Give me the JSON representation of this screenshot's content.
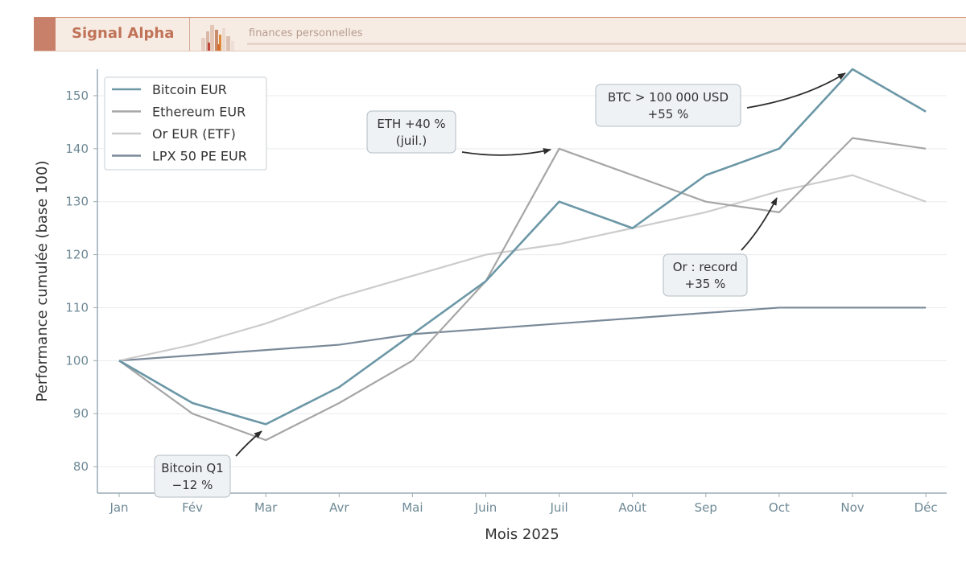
{
  "header": {
    "brand": "Signal Alpha",
    "tagline": "finances personnelles",
    "accent_color": "#c8806a"
  },
  "chart_data": {
    "type": "line",
    "xlabel": "Mois 2025",
    "ylabel": "Performance cumulée (base 100)",
    "categories": [
      "Jan",
      "Fév",
      "Mar",
      "Avr",
      "Mai",
      "Juin",
      "Juil",
      "Août",
      "Sep",
      "Oct",
      "Nov",
      "Déc"
    ],
    "ylim": [
      75,
      155
    ],
    "yticks": [
      80,
      90,
      100,
      110,
      120,
      130,
      140,
      150
    ],
    "grid": "horizontal",
    "legend_position": "top-left",
    "series": [
      {
        "name": "Bitcoin EUR",
        "color": "#6b97a6",
        "values": [
          100,
          92,
          88,
          95,
          105,
          115,
          130,
          125,
          135,
          140,
          155,
          147
        ]
      },
      {
        "name": "Ethereum EUR",
        "color": "#a6a6a6",
        "values": [
          100,
          90,
          85,
          92,
          100,
          115,
          140,
          135,
          130,
          128,
          142,
          140
        ]
      },
      {
        "name": "Or EUR (ETF)",
        "color": "#cccccc",
        "values": [
          100,
          103,
          107,
          112,
          116,
          120,
          122,
          125,
          128,
          132,
          135,
          130
        ]
      },
      {
        "name": "LPX 50 PE EUR",
        "color": "#7a8999",
        "values": [
          100,
          101,
          102,
          103,
          105,
          106,
          107,
          108,
          109,
          110,
          110,
          110
        ]
      }
    ],
    "annotations": [
      {
        "lines": [
          "ETH +40 %",
          "(juil.)"
        ],
        "target": [
          "Juil",
          140
        ]
      },
      {
        "lines": [
          "BTC > 100 000 USD",
          "+55 %"
        ],
        "target": [
          "Nov",
          155
        ]
      },
      {
        "lines": [
          "Or : record",
          "+35 %"
        ],
        "target": [
          "Oct",
          132
        ]
      },
      {
        "lines": [
          "Bitcoin Q1",
          "−12 %"
        ],
        "target": [
          "Mar",
          88
        ]
      }
    ]
  }
}
